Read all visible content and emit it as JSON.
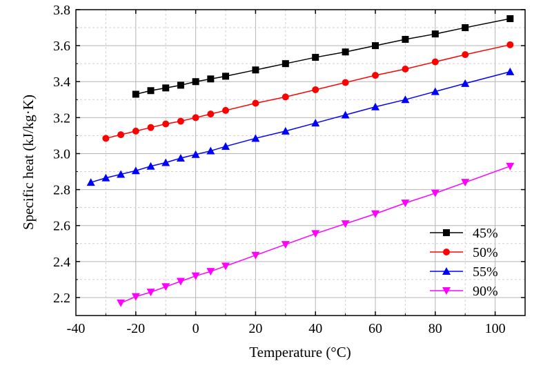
{
  "chart_data": {
    "type": "line",
    "xlabel": "Temperature (°C)",
    "ylabel": "Specific heat (kJ/kg·K)",
    "xlim": [
      -40,
      110
    ],
    "ylim": [
      2.1,
      3.8
    ],
    "xticks": [
      -40,
      -20,
      0,
      20,
      40,
      60,
      80,
      100
    ],
    "yticks": [
      2.2,
      2.4,
      2.6,
      2.8,
      3.0,
      3.2,
      3.4,
      3.6,
      3.8
    ],
    "xtick_labels": [
      "-40",
      "-20",
      "0",
      "20",
      "40",
      "60",
      "80",
      "100"
    ],
    "ytick_labels": [
      "2.2",
      "2.4",
      "2.6",
      "2.8",
      "3.0",
      "3.2",
      "3.4",
      "3.6",
      "3.8"
    ],
    "grid": true,
    "legend_position": "bottom-right",
    "series": [
      {
        "name": "45%",
        "color": "#000000",
        "marker": "square",
        "x": [
          -20,
          -15,
          -10,
          -5,
          0,
          5,
          10,
          20,
          30,
          40,
          50,
          60,
          70,
          80,
          90,
          105
        ],
        "y": [
          3.33,
          3.35,
          3.365,
          3.38,
          3.4,
          3.415,
          3.43,
          3.465,
          3.5,
          3.535,
          3.565,
          3.6,
          3.635,
          3.665,
          3.7,
          3.75
        ]
      },
      {
        "name": "50%",
        "color": "#ff0000",
        "marker": "circle",
        "x": [
          -30,
          -25,
          -20,
          -15,
          -10,
          -5,
          0,
          5,
          10,
          20,
          30,
          40,
          50,
          60,
          70,
          80,
          90,
          105
        ],
        "y": [
          3.085,
          3.105,
          3.125,
          3.145,
          3.165,
          3.18,
          3.2,
          3.22,
          3.24,
          3.28,
          3.315,
          3.355,
          3.395,
          3.435,
          3.47,
          3.51,
          3.55,
          3.605
        ]
      },
      {
        "name": "55%",
        "color": "#0000ff",
        "marker": "triangle-up",
        "x": [
          -35,
          -30,
          -25,
          -20,
          -15,
          -10,
          -5,
          0,
          5,
          10,
          20,
          30,
          40,
          50,
          60,
          70,
          80,
          90,
          105
        ],
        "y": [
          2.84,
          2.865,
          2.885,
          2.905,
          2.93,
          2.95,
          2.975,
          2.995,
          3.015,
          3.04,
          3.085,
          3.125,
          3.17,
          3.215,
          3.26,
          3.3,
          3.345,
          3.39,
          3.455
        ]
      },
      {
        "name": "90%",
        "color": "#ff00ff",
        "marker": "triangle-down",
        "x": [
          -25,
          -20,
          -15,
          -10,
          -5,
          0,
          5,
          10,
          20,
          30,
          40,
          50,
          60,
          70,
          80,
          90,
          105
        ],
        "y": [
          2.17,
          2.205,
          2.23,
          2.26,
          2.29,
          2.32,
          2.345,
          2.375,
          2.435,
          2.495,
          2.555,
          2.61,
          2.665,
          2.725,
          2.78,
          2.84,
          2.93
        ]
      }
    ]
  }
}
